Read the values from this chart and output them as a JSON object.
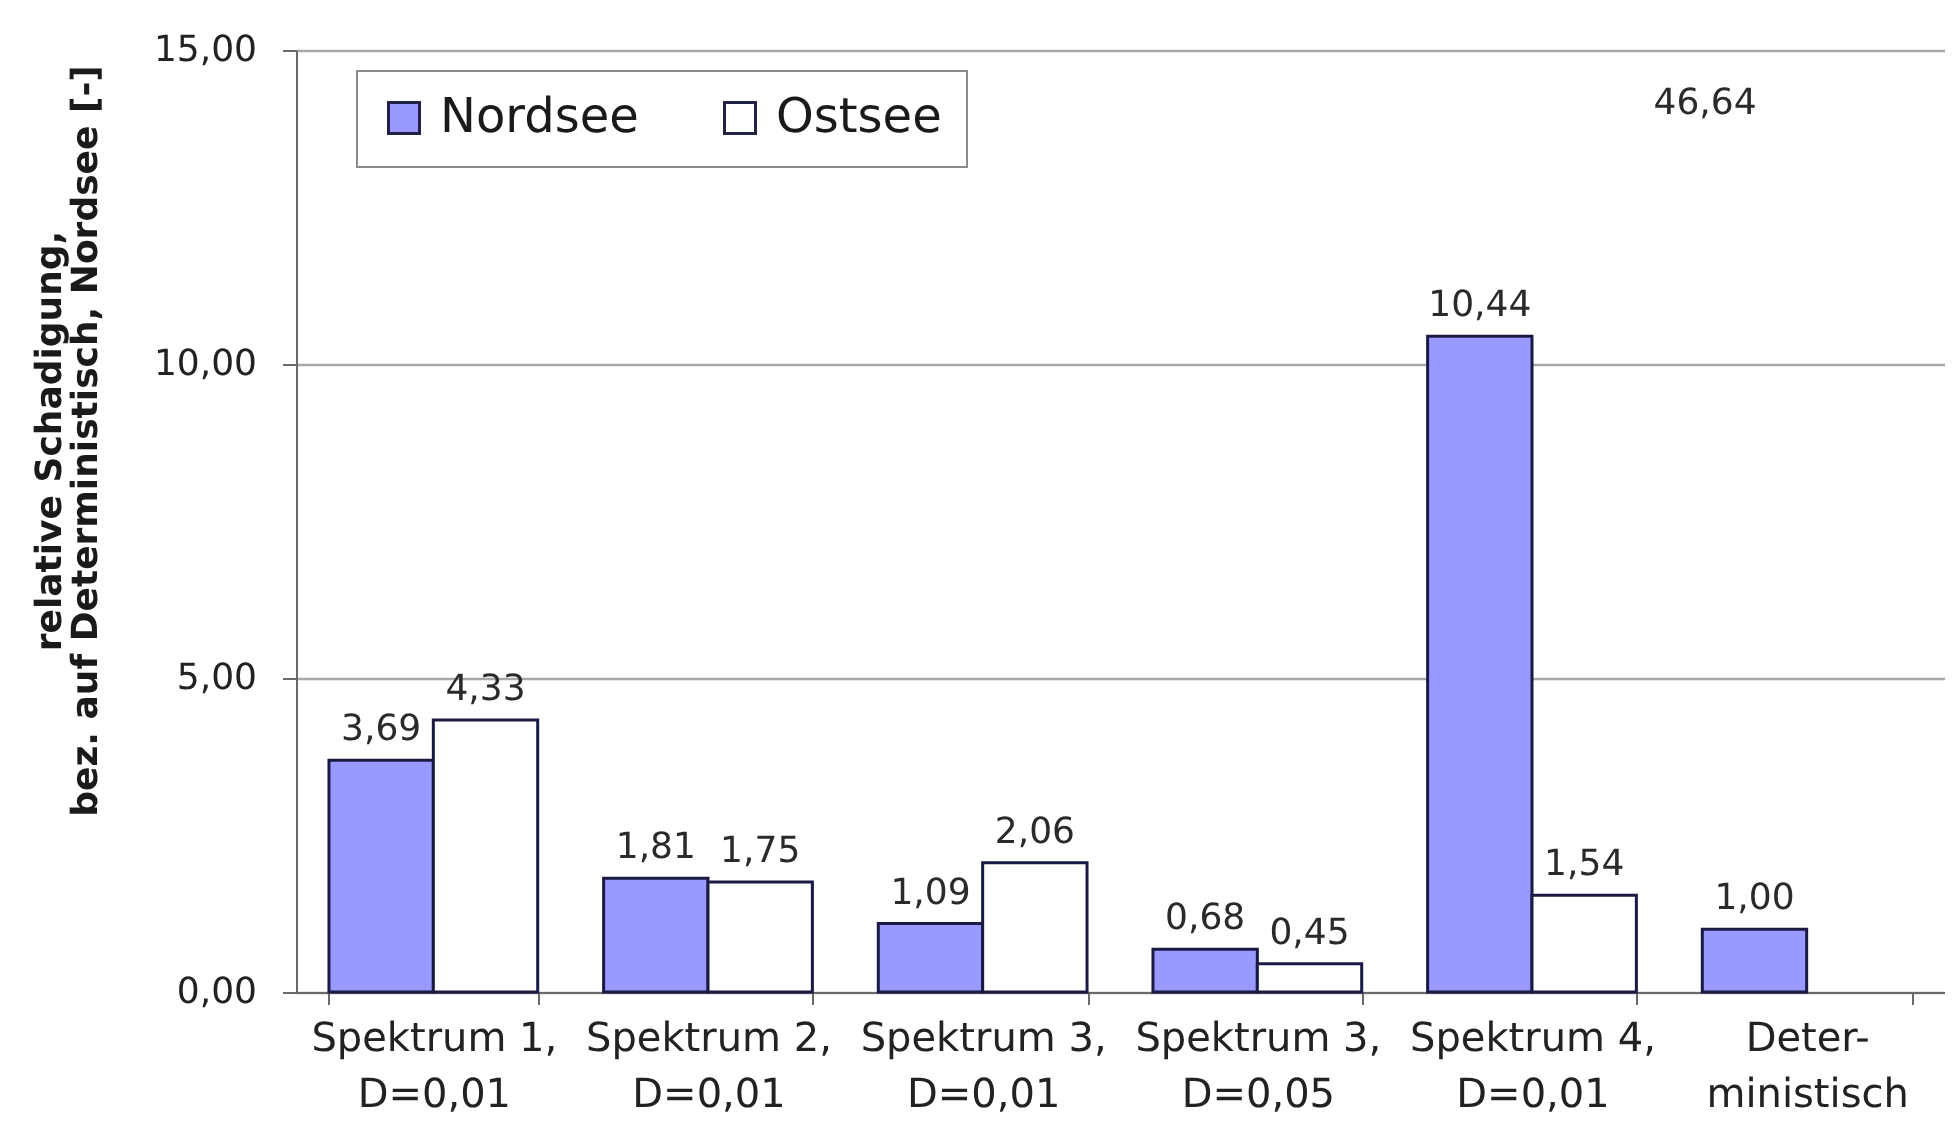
{
  "chart_data": {
    "type": "bar",
    "ylabel": "relative Schadigung,\nbez. auf Deterministisch, Nordsee [-]",
    "categories": [
      "Spektrum 1,\nD=0,01",
      "Spektrum 2,\nD=0,01",
      "Spektrum 3,\nD=0,01",
      "Spektrum 3,\nD=0,05",
      "Spektrum 4,\nD=0,01",
      "Deter-\nministisch"
    ],
    "series": [
      {
        "name": "Nordsee",
        "color": "#9999ff",
        "values": [
          3.69,
          1.81,
          1.09,
          0.68,
          10.44,
          1.0
        ],
        "value_labels": [
          "3,69",
          "1,81",
          "1,09",
          "0,68",
          "10,44",
          "1,00"
        ]
      },
      {
        "name": "Ostsee",
        "color": "#ffffff",
        "values": [
          4.33,
          1.75,
          2.06,
          0.45,
          1.54,
          null
        ],
        "value_labels": [
          "4,33",
          "1,75",
          "2,06",
          "0,45",
          "1,54",
          null
        ]
      }
    ],
    "annotations": [
      "46,64"
    ],
    "ylim": [
      0,
      15
    ],
    "yticks": [
      {
        "value": 0,
        "label": "0,00"
      },
      {
        "value": 5,
        "label": "5,00"
      },
      {
        "value": 10,
        "label": "10,00"
      },
      {
        "value": 15,
        "label": "15,00"
      }
    ],
    "grid": "y",
    "legend": "top left"
  }
}
